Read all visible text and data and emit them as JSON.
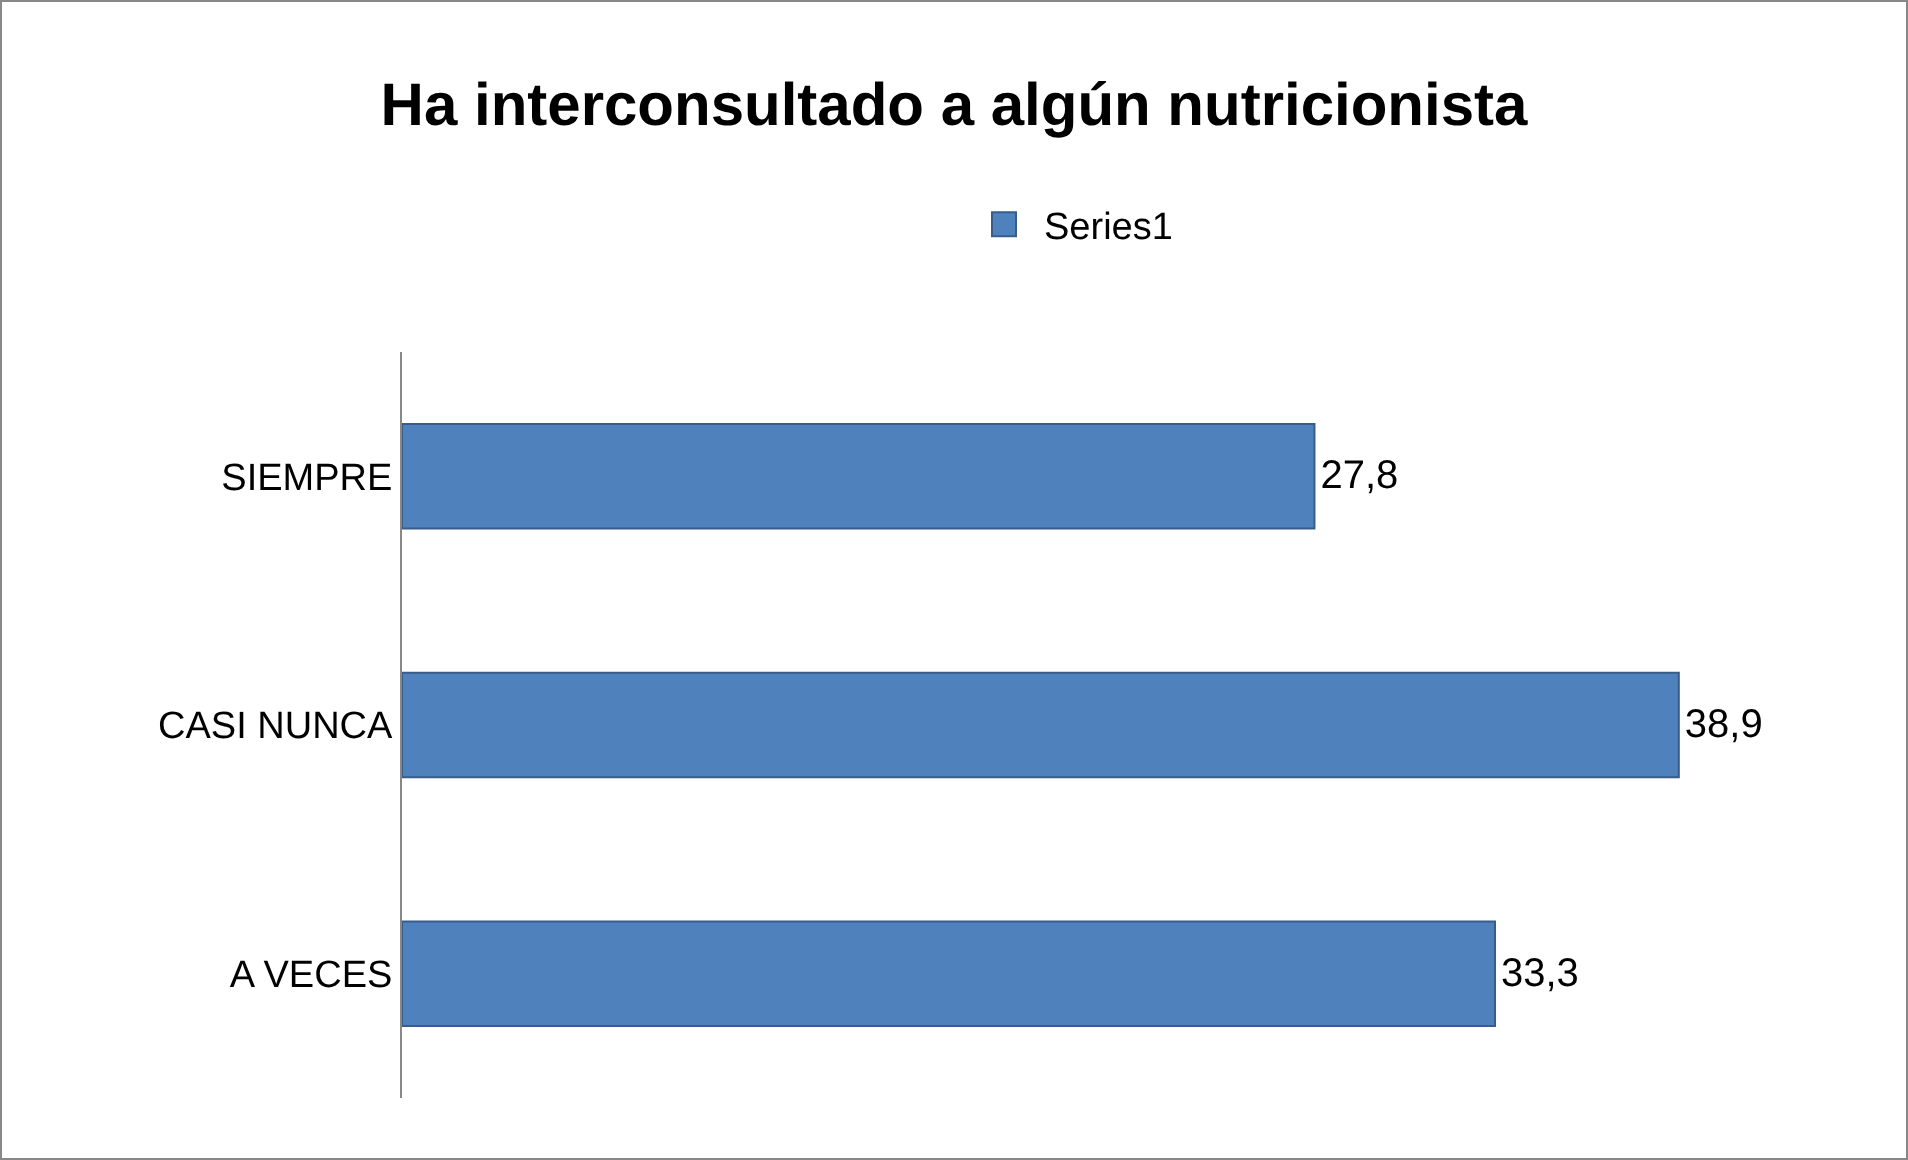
{
  "chart_data": {
    "type": "bar",
    "orientation": "horizontal",
    "title": "Ha interconsultado a algún nutricionista",
    "categories": [
      "SIEMPRE",
      "CASI NUNCA",
      "A VECES"
    ],
    "series": [
      {
        "name": "Series1",
        "color": "#4f81bd",
        "values": [
          27.8,
          38.9,
          33.3
        ],
        "value_labels": [
          "27,8",
          "38,9",
          "33,3"
        ]
      }
    ],
    "tick_labels": "y",
    "grid": false,
    "legend": "top"
  }
}
